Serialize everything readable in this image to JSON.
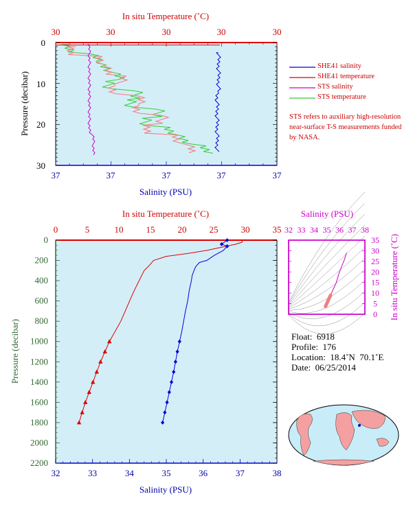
{
  "chart_data": [
    {
      "type": "line",
      "title": "",
      "top_axis_label": "In situ Temperature (˚C)",
      "top_ticks": [
        "30",
        "30",
        "30",
        "30",
        "30"
      ],
      "bottom_axis_label": "Salinity (PSU)",
      "bottom_ticks": [
        "37",
        "37",
        "37",
        "37",
        "37"
      ],
      "ylabel": "Pressure (decibar)",
      "ylim": [
        30,
        0
      ],
      "y_ticks": [
        "0",
        "10",
        "20",
        "30"
      ],
      "legend_position": "right",
      "series": [
        {
          "name": "SHE41 salinity",
          "color": "#0000cc",
          "y": [
            3,
            5,
            7,
            9,
            11,
            13,
            15,
            17,
            19,
            21,
            23,
            25,
            27
          ]
        },
        {
          "name": "SHE41 temperature",
          "color": "#cc0000",
          "y": [
            0,
            1,
            2,
            3
          ]
        },
        {
          "name": "STS salinity",
          "color": "#cc00cc",
          "y": [
            0.5,
            3,
            6,
            9,
            12,
            15,
            18,
            21,
            24,
            27
          ]
        },
        {
          "name": "STS temperature",
          "color": "#33cc33",
          "y": [
            0.5,
            3,
            6,
            9,
            12,
            15,
            18,
            21,
            24,
            27
          ]
        }
      ],
      "note": "STS refers to auxiliary high-resolution near-surface T-S measurements funded by NASA."
    },
    {
      "type": "line",
      "title": "",
      "top_axis_label": "In situ Temperature (˚C)",
      "top_ticks": [
        "0",
        "5",
        "10",
        "15",
        "20",
        "25",
        "30",
        "35"
      ],
      "top_range": [
        0,
        35
      ],
      "bottom_axis_label": "Salinity (PSU)",
      "bottom_ticks": [
        "32",
        "33",
        "34",
        "35",
        "36",
        "37",
        "38"
      ],
      "bottom_range": [
        32,
        38
      ],
      "ylabel": "Pressure (decibar)",
      "y_ticks": [
        "0",
        "200",
        "400",
        "600",
        "800",
        "1000",
        "1200",
        "1400",
        "1600",
        "1800",
        "2000",
        "2200"
      ],
      "ylim": [
        2200,
        0
      ],
      "series": [
        {
          "name": "Temperature",
          "color": "#dd0000",
          "marker": "triangle",
          "pressure": [
            0,
            20,
            40,
            60,
            80,
            100,
            130,
            160,
            200,
            250,
            300,
            350,
            400,
            500,
            600,
            700,
            800,
            900,
            1000,
            1100,
            1200,
            1300,
            1400,
            1500,
            1600,
            1700,
            1800
          ],
          "temperature": [
            29.5,
            29.5,
            28.5,
            27.0,
            25.5,
            24.0,
            21.0,
            17.5,
            15.5,
            14.8,
            14.0,
            13.6,
            13.2,
            12.4,
            11.7,
            11.0,
            10.3,
            9.4,
            8.5,
            7.8,
            7.1,
            6.5,
            5.9,
            5.3,
            4.7,
            4.2,
            3.7
          ]
        },
        {
          "name": "Salinity",
          "color": "#0000dd",
          "marker": "diamond",
          "pressure": [
            0,
            40,
            60,
            100,
            150,
            200,
            220,
            260,
            300,
            350,
            400,
            500,
            600,
            700,
            800,
            900,
            1000,
            1100,
            1200,
            1300,
            1400,
            1500,
            1600,
            1700,
            1800
          ],
          "salinity": [
            36.65,
            36.5,
            36.65,
            36.55,
            36.3,
            36.1,
            35.9,
            35.8,
            35.75,
            35.7,
            35.68,
            35.62,
            35.58,
            35.52,
            35.47,
            35.42,
            35.36,
            35.3,
            35.25,
            35.2,
            35.14,
            35.08,
            35.02,
            34.96,
            34.9
          ]
        }
      ]
    },
    {
      "type": "line",
      "title": "",
      "xlabel": "Salinity (PSU)",
      "x_ticks": [
        "32",
        "33",
        "34",
        "35",
        "36",
        "37",
        "38"
      ],
      "xlim": [
        32,
        38
      ],
      "ylabel": "In situ Temperature (˚C)",
      "y_ticks": [
        "0",
        "5",
        "10",
        "15",
        "20",
        "25",
        "30",
        "35"
      ],
      "ylim": [
        0,
        35
      ],
      "series": [
        {
          "name": "T-S",
          "color": "#cc00cc",
          "salinity": [
            36.55,
            36.4,
            36.2,
            36.0,
            35.85,
            35.75,
            35.6,
            35.45,
            35.3,
            35.15,
            35.0,
            34.9
          ],
          "temperature": [
            29,
            26,
            23,
            20,
            17,
            15,
            13,
            11,
            9,
            7,
            5,
            3.7
          ]
        }
      ]
    }
  ],
  "float_info": {
    "float": "Float:  6918",
    "profile": "Profile:  176",
    "location": "Location:  18.4˚N  70.1˚E",
    "date": "Date:  06/25/2014"
  },
  "legend": {
    "she41_salinity": "SHE41 salinity",
    "she41_temperature": "SHE41 temperature",
    "sts_salinity": "STS salinity",
    "sts_temperature": "STS temperature",
    "note": "STS refers to auxiliary high-resolution near-surface T-S measurements funded by NASA."
  },
  "colors": {
    "panel_bg": "#d4eef8",
    "temperature": "#dd0000",
    "salinity": "#0000cc",
    "sts_salinity": "#cc00cc",
    "sts_temperature": "#33cc33",
    "axis_green": "#336633",
    "map_land": "#f5a0a0",
    "map_ocean": "#c8ecf8"
  }
}
